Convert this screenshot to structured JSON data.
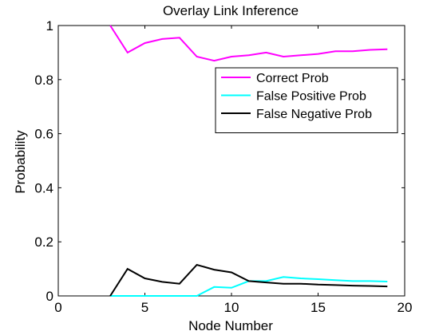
{
  "chart_data": {
    "type": "line",
    "title": "Overlay Link Inference",
    "xlabel": "Node Number",
    "ylabel": "Probability",
    "xlim": [
      0,
      20
    ],
    "ylim": [
      0,
      1
    ],
    "x_ticks": [
      0,
      5,
      10,
      15,
      20
    ],
    "x_tick_labels": [
      "0",
      "5",
      "10",
      "15",
      "20"
    ],
    "y_ticks": [
      0,
      0.2,
      0.4,
      0.6,
      0.8,
      1
    ],
    "y_tick_labels": [
      "0",
      "0.2",
      "0.4",
      "0.6",
      "0.8",
      "1"
    ],
    "grid": false,
    "legend_position": "top-right",
    "x": [
      3,
      4,
      5,
      6,
      7,
      8,
      9,
      10,
      11,
      12,
      13,
      14,
      15,
      16,
      17,
      18,
      19
    ],
    "series": [
      {
        "name": "Correct Prob",
        "color": "#ff00ff",
        "values": [
          1.0,
          0.9,
          0.935,
          0.95,
          0.955,
          0.885,
          0.87,
          0.885,
          0.89,
          0.9,
          0.885,
          0.89,
          0.895,
          0.905,
          0.905,
          0.91,
          0.912
        ]
      },
      {
        "name": "False Positive Prob",
        "color": "#00ffff",
        "values": [
          0.0,
          0.0,
          0.0,
          0.0,
          0.0,
          0.0,
          0.033,
          0.03,
          0.055,
          0.055,
          0.07,
          0.065,
          0.062,
          0.058,
          0.055,
          0.055,
          0.053
        ]
      },
      {
        "name": "False Negative Prob",
        "color": "#000000",
        "values": [
          0.0,
          0.1,
          0.065,
          0.052,
          0.045,
          0.115,
          0.097,
          0.087,
          0.055,
          0.05,
          0.045,
          0.045,
          0.042,
          0.04,
          0.038,
          0.037,
          0.035
        ]
      }
    ]
  }
}
